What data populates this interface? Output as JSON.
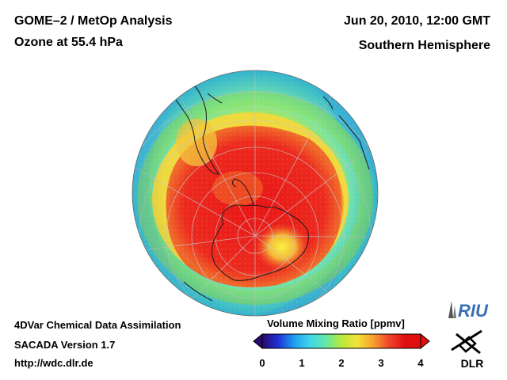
{
  "header": {
    "title_line1": "GOME–2 / MetOp Analysis",
    "title_line2": "Ozone at 55.4 hPa",
    "datetime": "Jun 20, 2010, 12:00 GMT",
    "hemisphere": "Southern Hemisphere"
  },
  "footer": {
    "line1": "4DVar Chemical Data Assimilation",
    "line2": "SACADA Version 1.7",
    "line3": "http://wdc.dlr.de"
  },
  "colorbar": {
    "label": "Volume Mixing Ratio [ppmv]",
    "ticks": [
      "0",
      "1",
      "2",
      "3",
      "4"
    ],
    "range": [
      0,
      4
    ],
    "colors": [
      "#2a0a6e",
      "#1e2fd6",
      "#1e9ef0",
      "#3fd6ea",
      "#62e8a8",
      "#b8ea3a",
      "#f2e23a",
      "#f7a02c",
      "#f0462a",
      "#e01010",
      "#e01010"
    ]
  },
  "logos": {
    "riu": "RIU",
    "dlr": "DLR"
  },
  "map": {
    "projection": "orthographic-south-polar",
    "field": "ozone-volume-mixing-ratio",
    "ozone_max_ppmv": 4.0,
    "ozone_min_ppmv": 1.5
  }
}
